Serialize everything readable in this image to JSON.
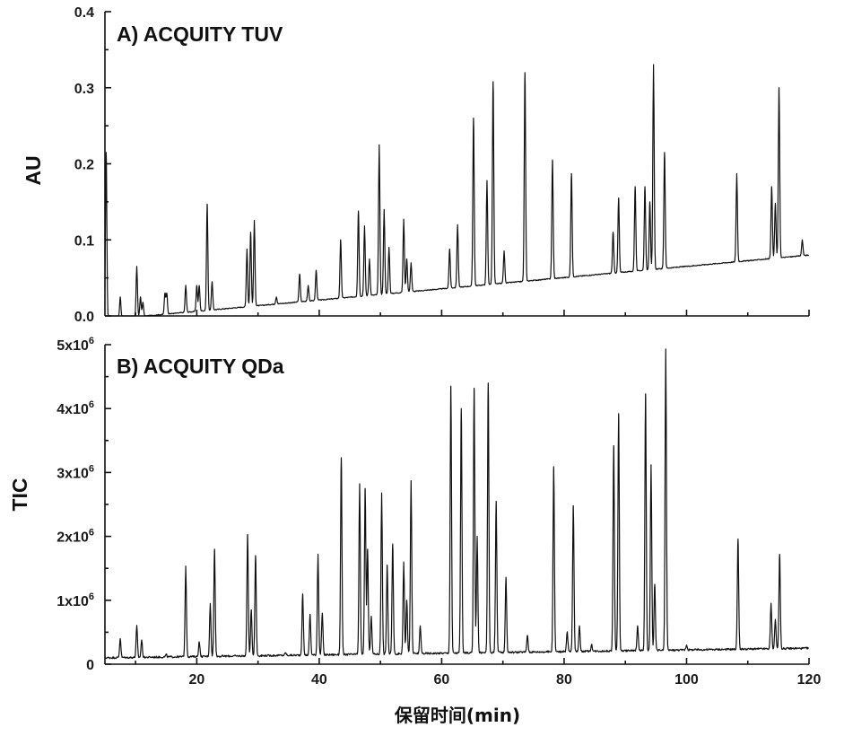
{
  "chart_data": [
    {
      "type": "line",
      "title": "A) ACQUITY TUV",
      "xlabel": "",
      "ylabel": "AU",
      "xlim": [
        5,
        120
      ],
      "ylim": [
        0,
        0.4
      ],
      "yticks": [
        "0.0",
        "0.1",
        "0.2",
        "0.3",
        "0.4"
      ],
      "yticks_values": [
        0,
        0.1,
        0.2,
        0.3,
        0.4
      ],
      "baseline": {
        "start": [
          5,
          -0.005
        ],
        "end": [
          120,
          0.08
        ]
      },
      "peaks": [
        [
          5.2,
          0.215
        ],
        [
          7.5,
          0.025
        ],
        [
          10.2,
          0.065
        ],
        [
          10.8,
          0.025
        ],
        [
          11.2,
          0.018
        ],
        [
          14.8,
          0.03
        ],
        [
          15.1,
          0.03
        ],
        [
          18.2,
          0.04
        ],
        [
          20.0,
          0.04
        ],
        [
          20.4,
          0.04
        ],
        [
          21.7,
          0.147
        ],
        [
          22.5,
          0.045
        ],
        [
          28.2,
          0.088
        ],
        [
          28.8,
          0.11
        ],
        [
          29.4,
          0.125
        ],
        [
          33.0,
          0.025
        ],
        [
          36.8,
          0.055
        ],
        [
          38.2,
          0.04
        ],
        [
          39.5,
          0.06
        ],
        [
          43.5,
          0.1
        ],
        [
          46.4,
          0.138
        ],
        [
          47.4,
          0.118
        ],
        [
          48.2,
          0.075
        ],
        [
          49.8,
          0.225
        ],
        [
          50.6,
          0.14
        ],
        [
          51.4,
          0.09
        ],
        [
          53.8,
          0.127
        ],
        [
          54.3,
          0.075
        ],
        [
          55.0,
          0.07
        ],
        [
          61.3,
          0.088
        ],
        [
          62.6,
          0.12
        ],
        [
          65.2,
          0.26
        ],
        [
          67.4,
          0.178
        ],
        [
          68.4,
          0.308
        ],
        [
          70.2,
          0.085
        ],
        [
          73.6,
          0.32
        ],
        [
          78.1,
          0.205
        ],
        [
          81.2,
          0.187
        ],
        [
          88.0,
          0.11
        ],
        [
          88.9,
          0.155
        ],
        [
          91.6,
          0.17
        ],
        [
          93.2,
          0.17
        ],
        [
          94.0,
          0.15
        ],
        [
          94.6,
          0.33
        ],
        [
          96.4,
          0.215
        ],
        [
          108.2,
          0.187
        ],
        [
          113.9,
          0.17
        ],
        [
          114.5,
          0.148
        ],
        [
          115.1,
          0.3
        ],
        [
          118.9,
          0.1
        ]
      ]
    },
    {
      "type": "line",
      "title": "B) ACQUITY QDa",
      "xlabel": "保留时间(min)",
      "ylabel": "TIC",
      "xlim": [
        5,
        120
      ],
      "ylim": [
        0,
        5000000
      ],
      "yticks_values": [
        0,
        1000000,
        2000000,
        3000000,
        4000000,
        5000000
      ],
      "yticks": [
        {
          "base": "0",
          "exp": ""
        },
        {
          "base": "1x10",
          "exp": "6"
        },
        {
          "base": "2x10",
          "exp": "6"
        },
        {
          "base": "3x10",
          "exp": "6"
        },
        {
          "base": "4x10",
          "exp": "6"
        },
        {
          "base": "5x10",
          "exp": "6"
        }
      ],
      "xticks": [
        "20",
        "40",
        "60",
        "80",
        "100",
        "120"
      ],
      "xticks_values": [
        20,
        40,
        60,
        80,
        100,
        120
      ],
      "baseline": {
        "start": [
          5,
          100000
        ],
        "end": [
          120,
          250000
        ]
      },
      "peaks": [
        [
          7.5,
          400000
        ],
        [
          10.2,
          600000
        ],
        [
          11.0,
          380000
        ],
        [
          15.0,
          150000
        ],
        [
          18.2,
          1520000
        ],
        [
          20.4,
          350000
        ],
        [
          22.2,
          950000
        ],
        [
          22.9,
          1800000
        ],
        [
          28.3,
          2030000
        ],
        [
          28.9,
          850000
        ],
        [
          29.6,
          1700000
        ],
        [
          34.5,
          180000
        ],
        [
          37.3,
          1100000
        ],
        [
          38.5,
          780000
        ],
        [
          39.8,
          1720000
        ],
        [
          40.5,
          800000
        ],
        [
          43.6,
          3230000
        ],
        [
          46.6,
          2820000
        ],
        [
          47.5,
          2750000
        ],
        [
          47.9,
          1800000
        ],
        [
          48.5,
          750000
        ],
        [
          50.2,
          2680000
        ],
        [
          51.1,
          1550000
        ],
        [
          52.0,
          1880000
        ],
        [
          53.8,
          1600000
        ],
        [
          54.3,
          1000000
        ],
        [
          55.0,
          2870000
        ],
        [
          56.5,
          600000
        ],
        [
          61.5,
          4350000
        ],
        [
          63.2,
          4000000
        ],
        [
          65.3,
          4320000
        ],
        [
          65.8,
          2000000
        ],
        [
          67.6,
          4400000
        ],
        [
          68.9,
          2550000
        ],
        [
          70.5,
          1360000
        ],
        [
          74.0,
          450000
        ],
        [
          78.3,
          3090000
        ],
        [
          80.5,
          500000
        ],
        [
          81.5,
          2480000
        ],
        [
          82.5,
          600000
        ],
        [
          84.5,
          300000
        ],
        [
          88.1,
          3420000
        ],
        [
          88.9,
          3920000
        ],
        [
          92.0,
          600000
        ],
        [
          93.3,
          4230000
        ],
        [
          94.2,
          3120000
        ],
        [
          94.8,
          1250000
        ],
        [
          96.6,
          4930000
        ],
        [
          100.0,
          300000
        ],
        [
          108.4,
          1960000
        ],
        [
          113.8,
          950000
        ],
        [
          114.5,
          700000
        ],
        [
          115.2,
          1720000
        ]
      ]
    }
  ]
}
